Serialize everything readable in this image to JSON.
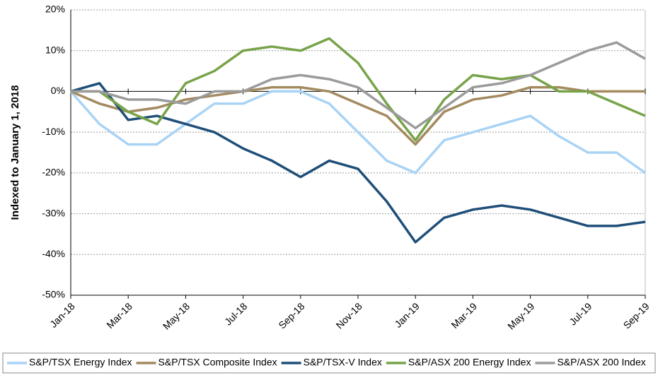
{
  "chart_data": {
    "type": "line",
    "y_label": "Indexed to January 1, 2018",
    "categories": [
      "Jan-18",
      null,
      "Mar-18",
      null,
      "May-18",
      null,
      "Jul-18",
      null,
      "Sep-18",
      null,
      "Nov-18",
      null,
      "Jan-19",
      null,
      "Mar-19",
      null,
      "May-19",
      null,
      "Jul-19",
      null,
      "Sep-19"
    ],
    "series": [
      {
        "name": "S&P/TSX Energy Index",
        "color": "#a9d3f5",
        "values": [
          0,
          -8,
          -13,
          -13,
          -8,
          -3,
          -3,
          0,
          0,
          -3,
          -10,
          -17,
          -20,
          -12,
          -10,
          -8,
          -6,
          -11,
          -15,
          -15,
          -20
        ]
      },
      {
        "name": "S&P/TSX Composite Index",
        "color": "#a38a5f",
        "values": [
          0,
          -3,
          -5,
          -4,
          -2,
          -1,
          0,
          1,
          1,
          0,
          -3,
          -6,
          -13,
          -5,
          -2,
          -1,
          1,
          1,
          0,
          0,
          0
        ]
      },
      {
        "name": "S&P/TSX-V Index",
        "color": "#1f4e79",
        "values": [
          0,
          2,
          -7,
          -6,
          -8,
          -10,
          -14,
          -17,
          -21,
          -17,
          -19,
          -27,
          -37,
          -31,
          -29,
          -28,
          -29,
          -31,
          -33,
          -33,
          -32
        ]
      },
      {
        "name": "S&P/ASX 200 Energy Index",
        "color": "#77a349",
        "values": [
          0,
          0,
          -5,
          -8,
          2,
          5,
          10,
          11,
          10,
          13,
          7,
          -3,
          -12,
          -2,
          4,
          3,
          4,
          0,
          0,
          -3,
          -6
        ]
      },
      {
        "name": "S&P/ASX 200 Index",
        "color": "#9b9b9b",
        "values": [
          0,
          0,
          -2,
          -2,
          -3,
          0,
          0,
          3,
          4,
          3,
          1,
          -4,
          -9,
          -4,
          1,
          2,
          4,
          7,
          10,
          12,
          8
        ]
      }
    ],
    "ylim": [
      -50,
      20
    ],
    "yticks": [
      {
        "value": -50,
        "label": "-50%"
      },
      {
        "value": -40,
        "label": "-40%"
      },
      {
        "value": -30,
        "label": "-30%"
      },
      {
        "value": -20,
        "label": "-20%"
      },
      {
        "value": -10,
        "label": "-10%"
      },
      {
        "value": 0,
        "label": "0%"
      },
      {
        "value": 10,
        "label": "10%"
      },
      {
        "value": 20,
        "label": "20%"
      }
    ],
    "grid": true,
    "legend": "bottom"
  }
}
